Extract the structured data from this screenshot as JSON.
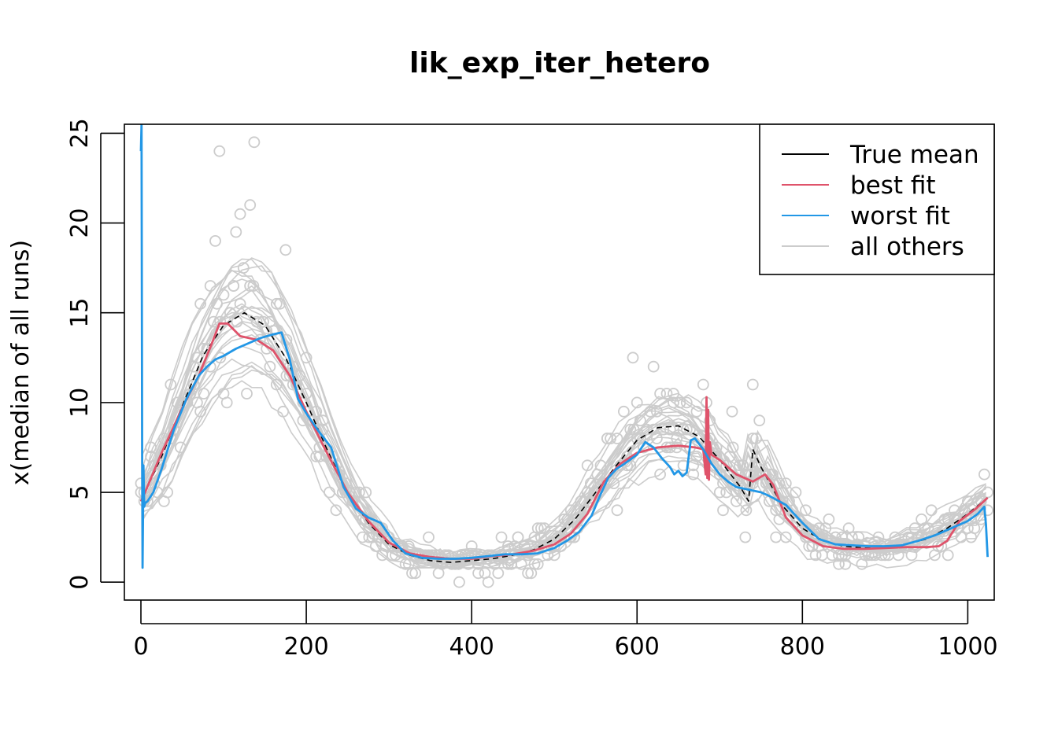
{
  "chart_data": {
    "type": "line",
    "title": "lik_exp_iter_hetero",
    "xlabel": "",
    "ylabel": "x(median of all runs)",
    "xlim": [
      -20,
      1032
    ],
    "ylim": [
      -1,
      25.5
    ],
    "x_ticks": [
      0,
      200,
      400,
      600,
      800,
      1000
    ],
    "y_ticks": [
      0,
      5,
      10,
      15,
      20,
      25
    ],
    "x_tick_labels": [
      "0",
      "200",
      "400",
      "600",
      "800",
      "1000"
    ],
    "y_tick_labels": [
      "0",
      "5",
      "10",
      "15",
      "20",
      "25"
    ],
    "grid": false,
    "legend_position": "top-right",
    "colors": {
      "true_mean": "#000000",
      "best_fit": "#DF536B",
      "worst_fit": "#2297E6",
      "all_others": "#CCCCCC"
    },
    "legend": [
      {
        "key": "true_mean",
        "label": "True mean"
      },
      {
        "key": "best_fit",
        "label": "best fit"
      },
      {
        "key": "worst_fit",
        "label": "worst fit"
      },
      {
        "key": "all_others",
        "label": "all others"
      }
    ],
    "series": [
      {
        "name": "True mean",
        "key": "true_mean",
        "dashed": true,
        "x": [
          0,
          25,
          50,
          75,
          100,
          125,
          150,
          175,
          200,
          225,
          250,
          275,
          300,
          325,
          350,
          375,
          400,
          425,
          450,
          475,
          500,
          525,
          550,
          575,
          600,
          625,
          650,
          675,
          700,
          725,
          735,
          740,
          750,
          775,
          800,
          825,
          850,
          875,
          900,
          925,
          950,
          975,
          1000,
          1024
        ],
        "y": [
          4.5,
          7.0,
          9.8,
          12.6,
          14.3,
          15.0,
          14.3,
          12.5,
          10.0,
          7.4,
          5.0,
          3.3,
          2.1,
          1.5,
          1.2,
          1.1,
          1.2,
          1.3,
          1.5,
          1.8,
          2.4,
          3.5,
          5.0,
          6.5,
          7.9,
          8.6,
          8.7,
          8.1,
          6.8,
          5.3,
          4.5,
          7.4,
          6.4,
          4.3,
          3.0,
          2.3,
          2.0,
          1.9,
          1.9,
          2.1,
          2.4,
          3.0,
          3.8,
          4.7
        ]
      },
      {
        "name": "best fit",
        "key": "best_fit",
        "dashed": false,
        "x": [
          0,
          5,
          25,
          50,
          70,
          85,
          95,
          105,
          120,
          140,
          160,
          180,
          200,
          225,
          250,
          275,
          300,
          325,
          350,
          375,
          400,
          425,
          450,
          475,
          500,
          520,
          540,
          560,
          580,
          600,
          625,
          650,
          670,
          680,
          683,
          684,
          685,
          686,
          687,
          688,
          690,
          700,
          720,
          740,
          755,
          765,
          780,
          800,
          825,
          850,
          875,
          900,
          925,
          950,
          965,
          975,
          990,
          1010,
          1024
        ],
        "y": [
          4.5,
          5.0,
          7.2,
          9.7,
          11.5,
          13.2,
          14.4,
          14.4,
          13.7,
          13.5,
          12.9,
          11.5,
          9.5,
          7.2,
          5.0,
          3.4,
          2.2,
          1.6,
          1.4,
          1.3,
          1.3,
          1.45,
          1.55,
          1.75,
          2.1,
          2.7,
          3.8,
          5.6,
          6.6,
          7.2,
          7.5,
          7.6,
          7.5,
          7.4,
          6.0,
          10.3,
          5.8,
          9.6,
          5.7,
          7.8,
          7.1,
          6.8,
          6.0,
          5.6,
          6.0,
          5.4,
          3.6,
          2.6,
          2.0,
          1.85,
          1.85,
          1.9,
          1.95,
          1.95,
          2.0,
          2.3,
          3.4,
          4.1,
          4.7
        ]
      },
      {
        "name": "worst fit",
        "key": "worst_fit",
        "dashed": false,
        "x": [
          0,
          0.8,
          1.5,
          2,
          3,
          4,
          5,
          8,
          15,
          25,
          40,
          55,
          70,
          80,
          90,
          100,
          115,
          130,
          145,
          160,
          170,
          180,
          190,
          200,
          215,
          230,
          245,
          260,
          275,
          290,
          305,
          320,
          340,
          360,
          380,
          400,
          420,
          440,
          460,
          480,
          500,
          515,
          530,
          545,
          555,
          565,
          575,
          585,
          600,
          610,
          620,
          630,
          640,
          645,
          650,
          655,
          660,
          665,
          670,
          680,
          690,
          700,
          710,
          720,
          730,
          740,
          750,
          760,
          780,
          800,
          820,
          840,
          860,
          880,
          900,
          920,
          940,
          960,
          980,
          1000,
          1012,
          1018,
          1020,
          1022,
          1024
        ],
        "y": [
          24.0,
          25.5,
          6.5,
          0.8,
          6.5,
          4.2,
          4.4,
          4.5,
          5.0,
          6.3,
          8.5,
          10.2,
          11.5,
          12.0,
          12.4,
          12.6,
          13.0,
          13.3,
          13.6,
          13.8,
          13.9,
          12.4,
          10.2,
          9.4,
          8.4,
          7.5,
          5.3,
          4.1,
          3.6,
          3.3,
          2.3,
          1.6,
          1.35,
          1.3,
          1.3,
          1.35,
          1.45,
          1.55,
          1.55,
          1.6,
          1.9,
          2.3,
          2.8,
          3.7,
          4.8,
          5.8,
          6.3,
          6.6,
          7.1,
          7.8,
          7.5,
          6.9,
          6.4,
          6.0,
          6.2,
          5.9,
          6.1,
          7.9,
          8.0,
          7.4,
          6.6,
          6.0,
          5.6,
          5.3,
          5.2,
          5.1,
          5.0,
          4.8,
          4.3,
          3.3,
          2.4,
          2.1,
          2.05,
          2.0,
          2.0,
          2.05,
          2.3,
          2.6,
          3.0,
          3.4,
          3.8,
          4.1,
          4.2,
          3.2,
          1.4
        ]
      }
    ]
  }
}
